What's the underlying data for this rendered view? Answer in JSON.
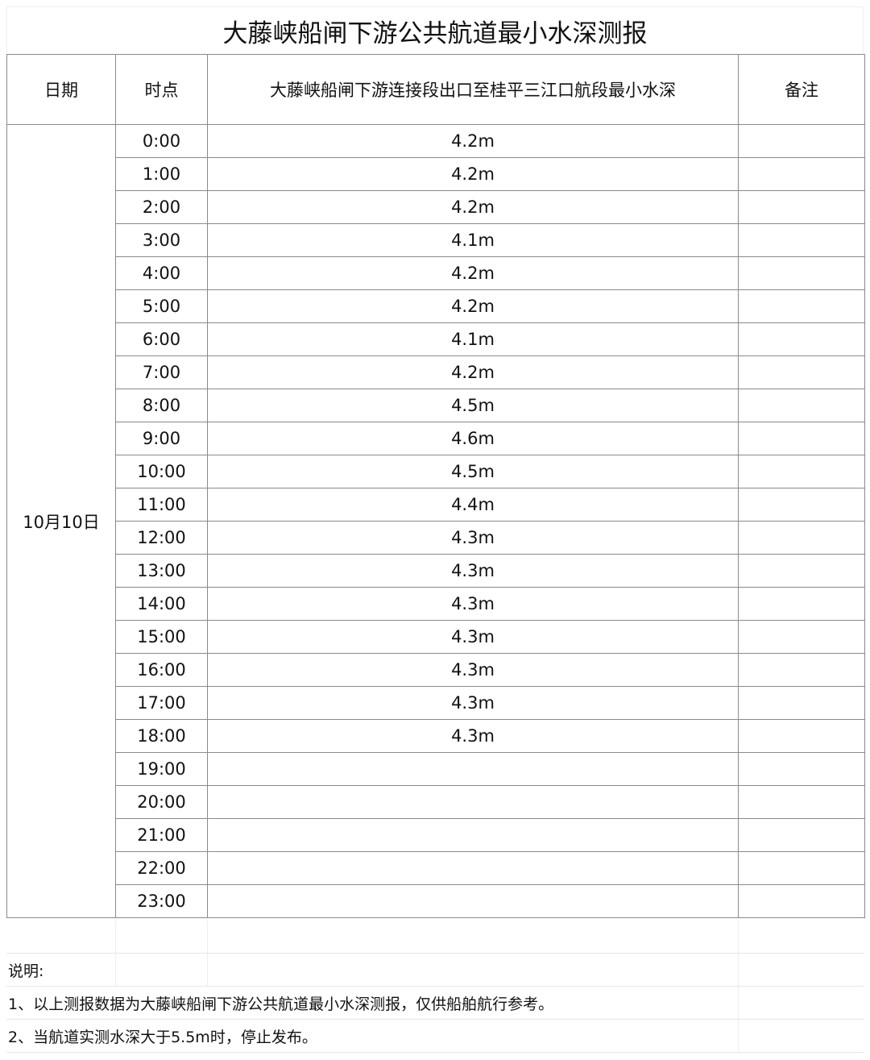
{
  "title": "大藤峡船闸下游公共航道最小水深测报",
  "headers": {
    "date": "日期",
    "time": "时点",
    "depth": "大藤峡船闸下游连接段出口至桂平三江口航段最小水深",
    "remarks": "备注"
  },
  "date": "10月10日",
  "rows": [
    {
      "time": "0:00",
      "depth": "4.2m"
    },
    {
      "time": "1:00",
      "depth": "4.2m"
    },
    {
      "time": "2:00",
      "depth": "4.2m"
    },
    {
      "time": "3:00",
      "depth": "4.1m"
    },
    {
      "time": "4:00",
      "depth": "4.2m"
    },
    {
      "time": "5:00",
      "depth": "4.2m"
    },
    {
      "time": "6:00",
      "depth": "4.1m"
    },
    {
      "time": "7:00",
      "depth": "4.2m"
    },
    {
      "time": "8:00",
      "depth": "4.5m"
    },
    {
      "time": "9:00",
      "depth": "4.6m"
    },
    {
      "time": "10:00",
      "depth": "4.5m"
    },
    {
      "time": "11:00",
      "depth": "4.4m"
    },
    {
      "time": "12:00",
      "depth": "4.3m"
    },
    {
      "time": "13:00",
      "depth": "4.3m"
    },
    {
      "time": "14:00",
      "depth": "4.3m"
    },
    {
      "time": "15:00",
      "depth": "4.3m"
    },
    {
      "time": "16:00",
      "depth": "4.3m"
    },
    {
      "time": "17:00",
      "depth": "4.3m"
    },
    {
      "time": "18:00",
      "depth": "4.3m"
    },
    {
      "time": "19:00",
      "depth": ""
    },
    {
      "time": "20:00",
      "depth": ""
    },
    {
      "time": "21:00",
      "depth": ""
    },
    {
      "time": "22:00",
      "depth": ""
    },
    {
      "time": "23:00",
      "depth": ""
    }
  ],
  "notes": {
    "heading": "说明:",
    "items": [
      "1、以上测报数据为大藤峡船闸下游公共航道最小水深测报，仅供船舶航行参考。",
      "2、当航道实测水深大于5.5m时，停止发布。"
    ]
  }
}
